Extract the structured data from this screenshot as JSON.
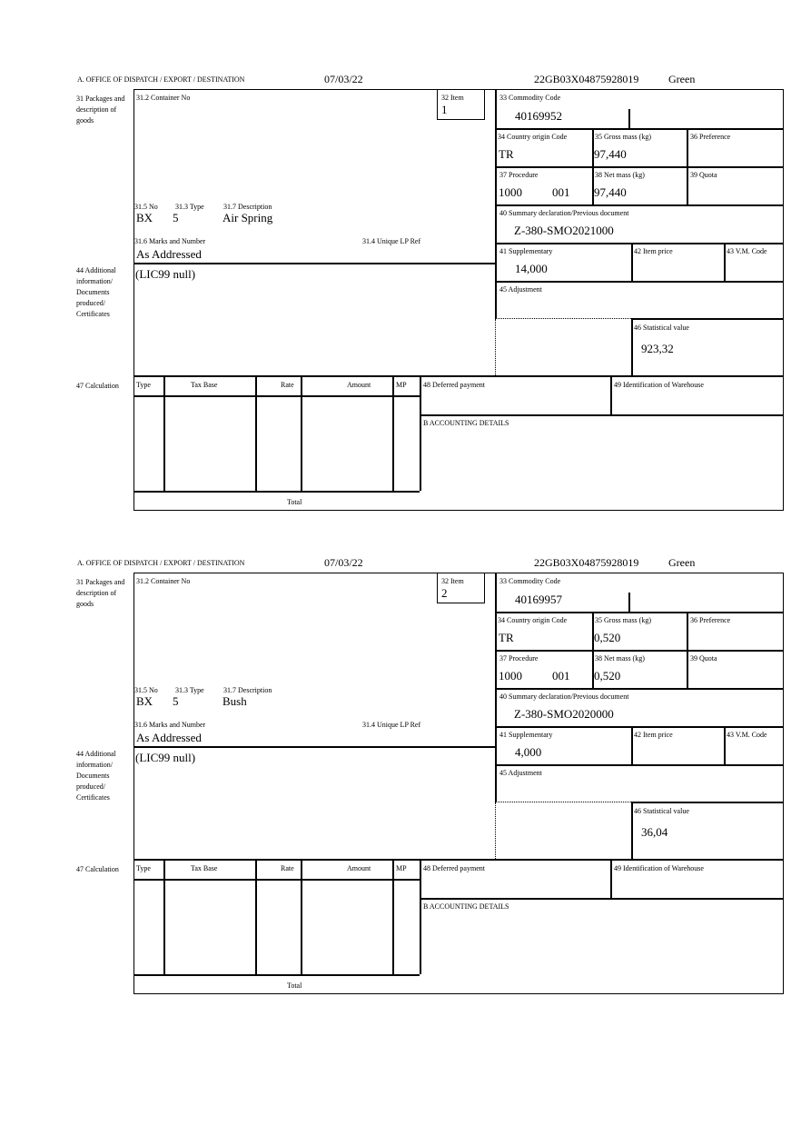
{
  "header_label": "A. OFFICE OF DISPATCH / EXPORT / DESTINATION",
  "labels": {
    "packages": "31 Packages and description of goods",
    "container_no": "31.2 Container No",
    "item": "32 Item",
    "commodity_code": "33 Commodity Code",
    "country_origin": "34 Country origin Code",
    "gross_mass": "35 Gross mass (kg)",
    "preference": "36 Preference",
    "procedure": "37 Procedure",
    "net_mass": "38 Net mass (kg)",
    "quota": "39 Quota",
    "summary_declaration": "40 Summary declaration/Previous document",
    "no": "31.5 No",
    "type": "31.3 Type",
    "description": "31.7 Description",
    "marks": "31.6 Marks and Number",
    "unique_lp_ref": "31.4 Unique LP Ref",
    "supplementary": "41 Supplementary",
    "item_price": "42 Item price",
    "vm_code": "43 V.M. Code",
    "adjustment": "45 Adjustment",
    "statistical_value": "46 Statistical value",
    "additional_info": "44 Additional information/ Documents produced/ Certificates",
    "calculation": "47 Calculation",
    "calc_type": "Type",
    "tax_base": "Tax Base",
    "rate": "Rate",
    "amount": "Amount",
    "mp": "MP",
    "deferred_payment": "48 Deferred payment",
    "warehouse": "49 Identification of Warehouse",
    "accounting": "B ACCOUNTING DETAILS",
    "total": "Total"
  },
  "forms": [
    {
      "date": "07/03/22",
      "reference": "22GB03X04875928019",
      "route": "Green",
      "item": "1",
      "commodity_code": "40169952",
      "country_origin": "TR",
      "gross_mass": "97,440",
      "procedure": "1000",
      "procedure_extra": "001",
      "net_mass": "97,440",
      "summary_declaration": "Z-380-SMO2021000",
      "no": "BX",
      "type": "5",
      "description": "Air Spring",
      "marks": "As Addressed",
      "supplementary": "14,000",
      "statistical_value": "923,32",
      "additional_info": "(LIC99 null)"
    },
    {
      "date": "07/03/22",
      "reference": "22GB03X04875928019",
      "route": "Green",
      "item": "2",
      "commodity_code": "40169957",
      "country_origin": "TR",
      "gross_mass": "0,520",
      "procedure": "1000",
      "procedure_extra": "001",
      "net_mass": "0,520",
      "summary_declaration": "Z-380-SMO2020000",
      "no": "BX",
      "type": "5",
      "description": "Bush",
      "marks": "As Addressed",
      "supplementary": "4,000",
      "statistical_value": "36,04",
      "additional_info": "(LIC99 null)"
    }
  ]
}
